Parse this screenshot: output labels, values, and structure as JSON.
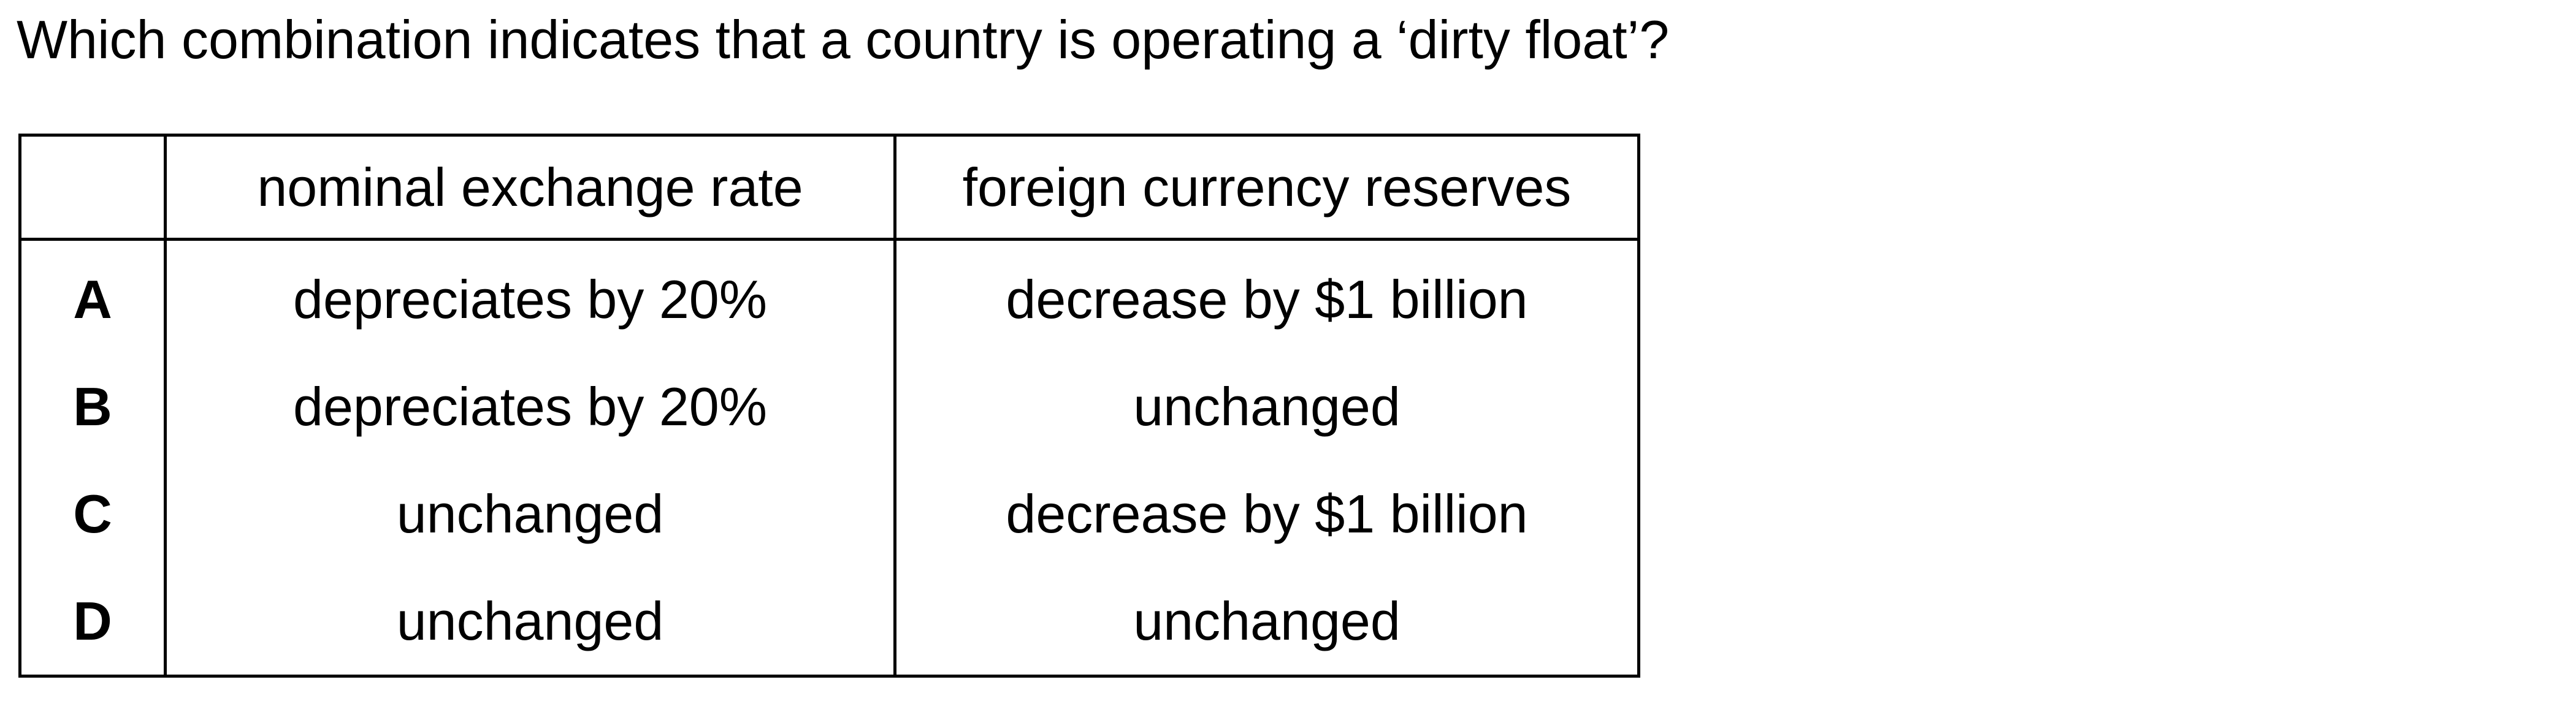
{
  "question": "Which combination indicates that a country is operating a ‘dirty float’?",
  "table": {
    "headers": [
      "",
      "nominal exchange rate",
      "foreign currency reserves"
    ],
    "rows": [
      {
        "letter": "A",
        "exchange_rate": "depreciates by 20%",
        "reserves": "decrease by $1 billion"
      },
      {
        "letter": "B",
        "exchange_rate": "depreciates by 20%",
        "reserves": "unchanged"
      },
      {
        "letter": "C",
        "exchange_rate": "unchanged",
        "reserves": "decrease by $1 billion"
      },
      {
        "letter": "D",
        "exchange_rate": "unchanged",
        "reserves": "unchanged"
      }
    ]
  }
}
